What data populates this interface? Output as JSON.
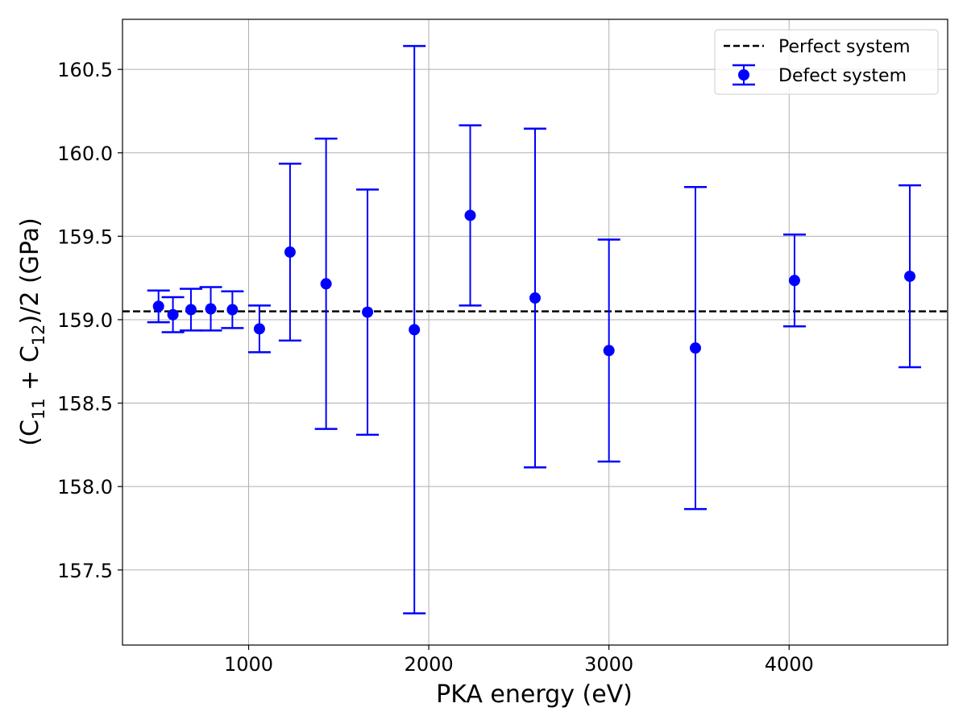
{
  "chart_data": {
    "type": "scatter",
    "xlabel": "PKA energy (eV)",
    "ylabel": {
      "prefix": "(C",
      "sub1": "11",
      "mid": " + C",
      "sub2": "12",
      "suffix": ")/2 (GPa)"
    },
    "xlim": [
      300,
      4880
    ],
    "ylim": [
      157.05,
      160.8
    ],
    "x_ticks": [
      1000,
      2000,
      3000,
      4000
    ],
    "y_ticks": [
      157.5,
      158.0,
      158.5,
      159.0,
      159.5,
      160.0,
      160.5
    ],
    "x_tick_labels": [
      "1000",
      "2000",
      "3000",
      "4000"
    ],
    "y_tick_labels": [
      "157.5",
      "158.0",
      "158.5",
      "159.0",
      "159.5",
      "160.0",
      "160.5"
    ],
    "grid": true,
    "legend_position": "top-right",
    "series": [
      {
        "name": "Perfect system",
        "kind": "hline",
        "y": 159.05,
        "color": "#000000",
        "style": "dashed"
      },
      {
        "name": "Defect system",
        "kind": "errorbar",
        "color": "#0000ff",
        "x": [
          500,
          580,
          680,
          790,
          910,
          1060,
          1230,
          1430,
          1660,
          1920,
          2230,
          2590,
          3000,
          3480,
          4030,
          4670
        ],
        "y": [
          159.08,
          159.03,
          159.06,
          159.065,
          159.06,
          158.945,
          159.405,
          159.215,
          159.045,
          158.94,
          159.625,
          159.13,
          158.815,
          158.83,
          159.235,
          159.26
        ],
        "yerr": [
          0.095,
          0.105,
          0.125,
          0.13,
          0.11,
          0.14,
          0.53,
          0.87,
          0.735,
          1.7,
          0.54,
          1.015,
          0.665,
          0.965,
          0.275,
          0.545
        ]
      }
    ]
  }
}
